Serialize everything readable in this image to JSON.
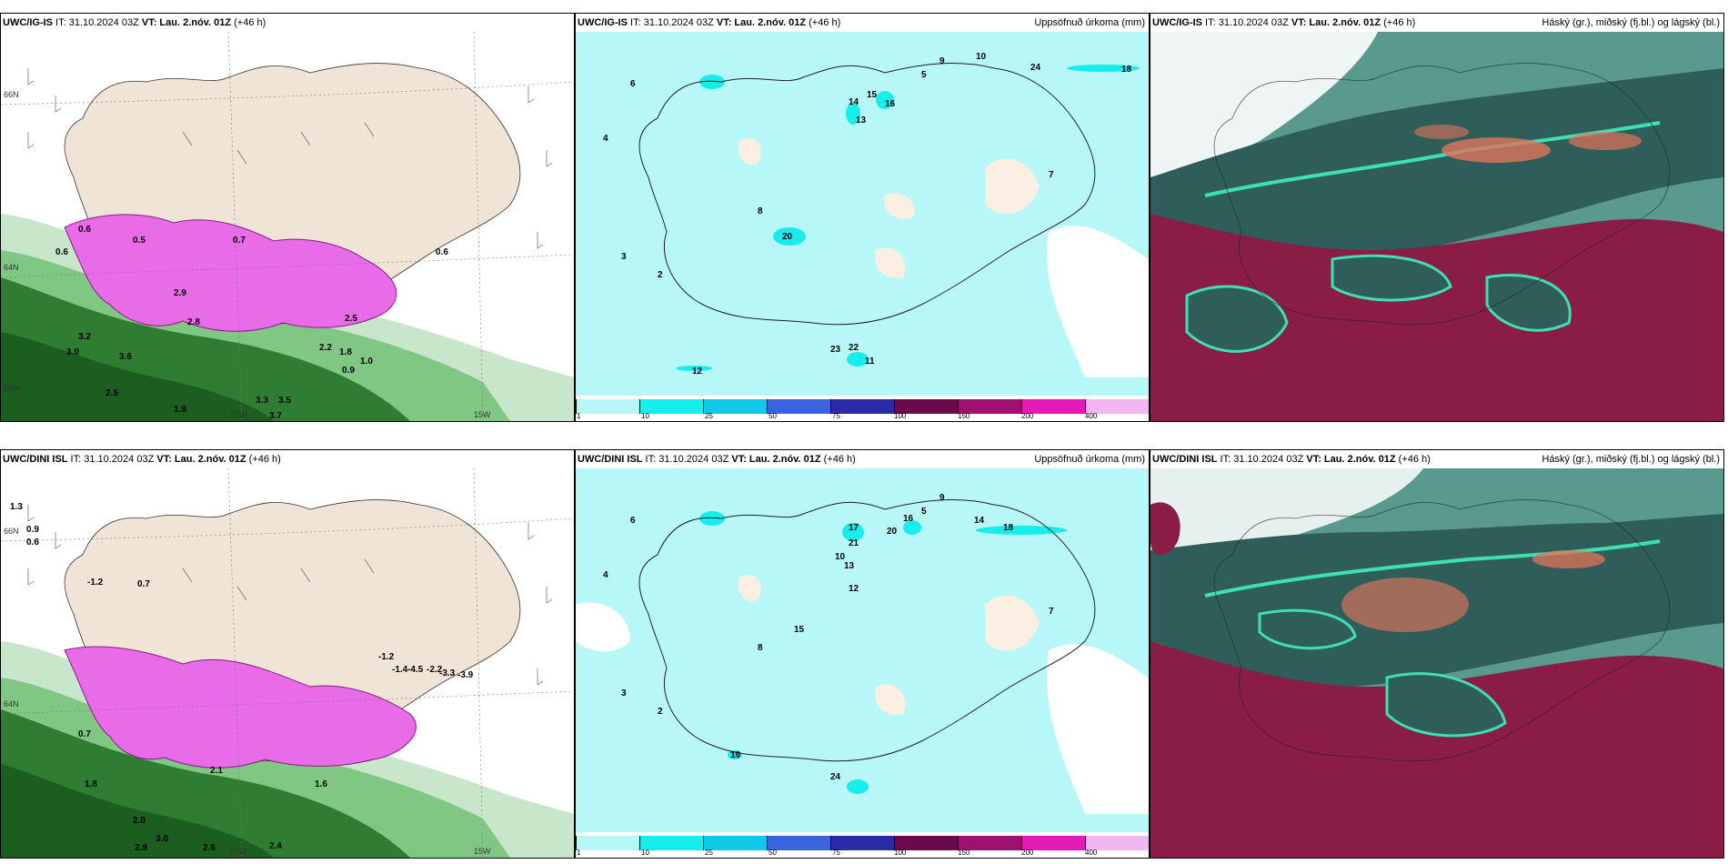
{
  "rows": [
    {
      "model": "UWC/IG-IS",
      "header": " IT: 31.10.2024 03Z ",
      "vt_label": "VT: Lau. 2.nóv. 01Z",
      "lead": " (+46 h)"
    },
    {
      "model": "UWC/DINI ISL",
      "header": " IT: 31.10.2024 03Z ",
      "vt_label": "VT: Lau. 2.nóv. 01Z",
      "lead": " (+46 h)"
    }
  ],
  "precip_title": "Uppsöfnuð úrkoma (mm)",
  "cloud_title": "Háský (gr.), miðský (fj.bl.) og lágský (bl.)",
  "colorbar": {
    "labels": [
      "1",
      "10",
      "25",
      "50",
      "75",
      "100",
      "150",
      "200",
      "400"
    ],
    "colors": [
      "#b8f7f7",
      "#17eded",
      "#10c8e8",
      "#3a63e0",
      "#2a2aa8",
      "#6b0a4a",
      "#a01070",
      "#e51bb8",
      "#f2b6f2"
    ]
  },
  "map_labels": {
    "lat66": "66N",
    "lat64": "64N",
    "lon20": "20W",
    "lon15": "15W",
    "lon25": "25W"
  },
  "snow_values_top": [
    "0.6",
    "0.6",
    "0.5",
    "0.7",
    "2.9",
    "2.8",
    "3.2",
    "3.0",
    "3.6",
    "2.5",
    "1.9",
    "3.3",
    "3.5",
    "3.7",
    "0.6",
    "1.0",
    "2.5",
    "2.2",
    "1.8",
    "0.9"
  ],
  "snow_values_bottom": [
    "1.3",
    "0.9",
    "0.6",
    "-1.2",
    "0.7",
    "1.8",
    "2.0",
    "2.9",
    "3.0",
    "2.6",
    "2.4",
    "-1.2",
    "-1.4",
    "-4.5",
    "-2.2",
    "-3.3",
    "-3.9",
    "0.7",
    "1.6",
    "2.1"
  ],
  "precip_values_top": [
    "14",
    "13",
    "15",
    "16",
    "22",
    "11",
    "20",
    "12",
    "10",
    "7",
    "5",
    "6",
    "4",
    "3",
    "2",
    "9",
    "18",
    "24",
    "23",
    "8"
  ],
  "precip_values_bottom": [
    "17",
    "16",
    "21",
    "14",
    "12",
    "13",
    "10",
    "24",
    "16",
    "7",
    "5",
    "6",
    "4",
    "3",
    "2",
    "9",
    "18",
    "20",
    "15",
    "8"
  ],
  "colors": {
    "land": "#efe4d6",
    "sea_precip": "#b8f7f7",
    "snow_magenta": "#e86be8",
    "snow_green_dark": "#2e7d32",
    "snow_green_mid": "#66bb6a",
    "snow_green_light": "#c8e6c9",
    "cloud_dark": "#2f5e5a",
    "cloud_maroon": "#8a1d45",
    "cloud_mint": "#3fe0b0",
    "cloud_salmon": "#e0735a"
  }
}
